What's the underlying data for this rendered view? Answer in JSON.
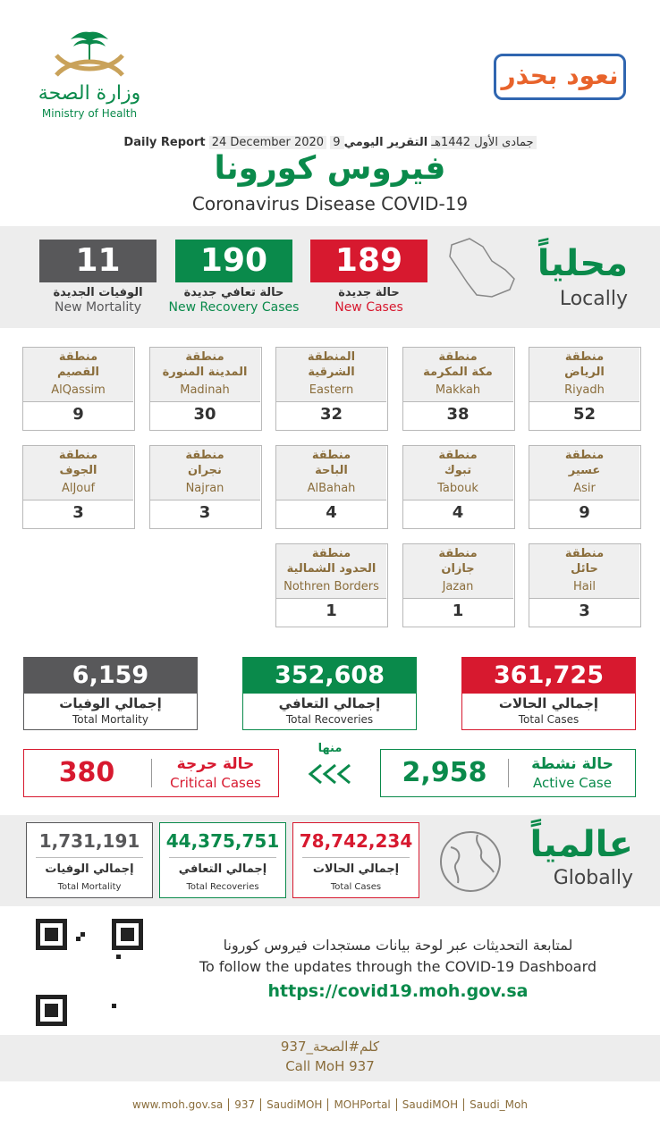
{
  "header": {
    "ministry_ar": "وزارة الصحة",
    "ministry_en": "Ministry of Health",
    "campaign": "نعود بحذر"
  },
  "report": {
    "label_ar": "التقرير اليومي",
    "hijri": "9 جمادى الأول 1442هـ",
    "date": "24 December 2020",
    "label_en": "Daily Report"
  },
  "title_ar": "فيروس كورونا",
  "title_en": "Coronavirus Disease COVID-19",
  "local": {
    "heading_ar": "محلياً",
    "heading_en": "Locally",
    "stats": [
      {
        "value": 189,
        "label_ar": "حالة جديدة",
        "label_en": "New Cases",
        "color": "#d7192f"
      },
      {
        "value": 190,
        "label_ar": "حالة تعافي جديدة",
        "label_en": "New Recovery Cases",
        "color": "#0a8a4b"
      },
      {
        "value": 11,
        "label_ar": "الوفيات الجديدة",
        "label_en": "New Mortality",
        "color": "#58585a"
      }
    ]
  },
  "regions": [
    {
      "prefix": "منطقة",
      "name_ar": "الرياض",
      "name_en": "Riyadh",
      "cases": 52
    },
    {
      "prefix": "منطقة",
      "name_ar": "مكة المكرمة",
      "name_en": "Makkah",
      "cases": 38
    },
    {
      "prefix": "المنطقة",
      "name_ar": "الشرقية",
      "name_en": "Eastern",
      "cases": 32
    },
    {
      "prefix": "منطقة",
      "name_ar": "المدينة المنورة",
      "name_en": "Madinah",
      "cases": 30
    },
    {
      "prefix": "منطقة",
      "name_ar": "القصيم",
      "name_en": "AlQassim",
      "cases": 9
    },
    {
      "prefix": "منطقة",
      "name_ar": "عسير",
      "name_en": "Asir",
      "cases": 9
    },
    {
      "prefix": "منطقة",
      "name_ar": "تبوك",
      "name_en": "Tabouk",
      "cases": 4
    },
    {
      "prefix": "منطقة",
      "name_ar": "الباحة",
      "name_en": "AlBahah",
      "cases": 4
    },
    {
      "prefix": "منطقة",
      "name_ar": "نجران",
      "name_en": "Najran",
      "cases": 3
    },
    {
      "prefix": "منطقة",
      "name_ar": "الجوف",
      "name_en": "AlJouf",
      "cases": 3
    },
    {
      "prefix": "منطقة",
      "name_ar": "حائل",
      "name_en": "Hail",
      "cases": 3
    },
    {
      "prefix": "منطقة",
      "name_ar": "جازان",
      "name_en": "Jazan",
      "cases": 1
    },
    {
      "prefix": "منطقة",
      "name_ar": "الحدود الشمالية",
      "name_en": "Nothren Borders",
      "cases": 1
    }
  ],
  "totals": [
    {
      "value": "361,725",
      "label_ar": "إجمالي الحالات",
      "label_en": "Total Cases",
      "color": "#d7192f"
    },
    {
      "value": "352,608",
      "label_ar": "إجمالي التعافي",
      "label_en": "Total Recoveries",
      "color": "#0a8a4b"
    },
    {
      "value": "6,159",
      "label_ar": "إجمالي الوفيات",
      "label_en": "Total Mortality",
      "color": "#58585a"
    }
  ],
  "of_which": "منها",
  "critical": {
    "label_ar": "حالة حرجة",
    "label_en": "Critical Cases",
    "value": 380,
    "color": "#d7192f"
  },
  "active": {
    "label_ar": "حالة نشطة",
    "label_en": "Active Case",
    "value": "2,958",
    "color": "#0a8a4b"
  },
  "global": {
    "heading_ar": "عالمياً",
    "heading_en": "Globally",
    "stats": [
      {
        "value": "78,742,234",
        "label_ar": "إجمالي الحالات",
        "label_en": "Total Cases",
        "color": "#d7192f"
      },
      {
        "value": "44,375,751",
        "label_ar": "إجمالي التعافي",
        "label_en": "Total Recoveries",
        "color": "#0a8a4b"
      },
      {
        "value": "1,731,191",
        "label_ar": "إجمالي الوفيات",
        "label_en": "Total Mortality",
        "color": "#58585a"
      }
    ]
  },
  "dashboard": {
    "text_ar": "لمتابعة التحديثات عبر لوحة بيانات مستجدات فيروس كورونا",
    "text_en": "To follow the updates through the COVID-19 Dashboard",
    "url": "https://covid19.moh.gov.sa"
  },
  "call": {
    "ar": "كلم#الصحة_937",
    "en": "Call MoH 937"
  },
  "footer": [
    "www.moh.gov.sa",
    "937",
    "SaudiMOH",
    "MOHPortal",
    "SaudiMOH",
    "Saudi_Moh"
  ]
}
